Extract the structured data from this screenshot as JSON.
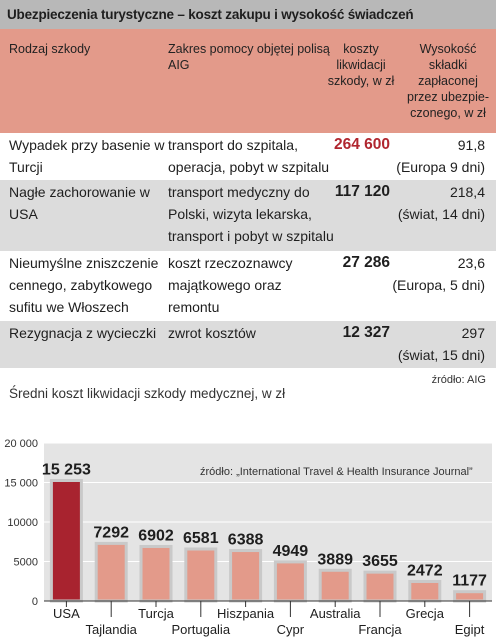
{
  "header": {
    "title": "Ubezpieczenia turystyczne – koszt zakupu i wysokość świadczeń"
  },
  "table": {
    "columns": [
      "Rodzaj szkody",
      "Zakres pomocy objętej polisą AIG",
      "koszty likwidacji szkody, w zł",
      "Wysokość składki zapłaconej przez ubezpie-czonego, w zł"
    ],
    "rows": [
      {
        "type": "Wypadek przy basenie w Turcji",
        "scope": "transport do szpitala, operacja, pobyt w szpitalu",
        "cost": "264 600",
        "premium": "91,8",
        "premium_note": "(Europa 9 dni)"
      },
      {
        "type": "Nagłe zachorowanie w USA",
        "scope": "transport medyczny do Polski, wizyta lekarska, transport i pobyt w szpitalu",
        "cost": "117 120",
        "premium": "218,4",
        "premium_note": "(świat, 14 dni)"
      },
      {
        "type": "Nieumyślne zniszczenie cennego, zabytkowego sufitu we Włoszech",
        "scope": "koszt rzeczoznawcy majątkowego oraz remontu",
        "cost": "27 286",
        "premium": "23,6",
        "premium_note": "(Europa, 5 dni)"
      },
      {
        "type": "Rezygnacja z wycieczki",
        "scope": "zwrot kosztów",
        "cost": "12 327",
        "premium": "297",
        "premium_note": "(świat, 15 dni)"
      }
    ],
    "source": "źródło: AIG"
  },
  "chart_data": {
    "type": "bar",
    "title": "Średni koszt likwidacji szkody medycznej, w zł",
    "source": "źródło: „International Travel & Health Insurance Journal”",
    "categories": [
      "USA",
      "Tajlandia",
      "Turcja",
      "Portugalia",
      "Hiszpania",
      "Cypr",
      "Australia",
      "Francja",
      "Grecja",
      "Egipt"
    ],
    "values": [
      15253,
      7292,
      6902,
      6581,
      6388,
      4949,
      3889,
      3655,
      2472,
      1177
    ],
    "value_labels": [
      "15 253",
      "7292",
      "6902",
      "6581",
      "6388",
      "4949",
      "3889",
      "3655",
      "2472",
      "1177"
    ],
    "yticks": [
      "0",
      "5000",
      "10000",
      "15 000",
      "20 000"
    ],
    "ylim": [
      0,
      20000
    ],
    "grid": true,
    "colors": {
      "highlight": "#a8232f",
      "bar": "#e39a8a",
      "bar_edge": "#c9c9c9",
      "plot_bg": "#e4e4e4"
    }
  }
}
